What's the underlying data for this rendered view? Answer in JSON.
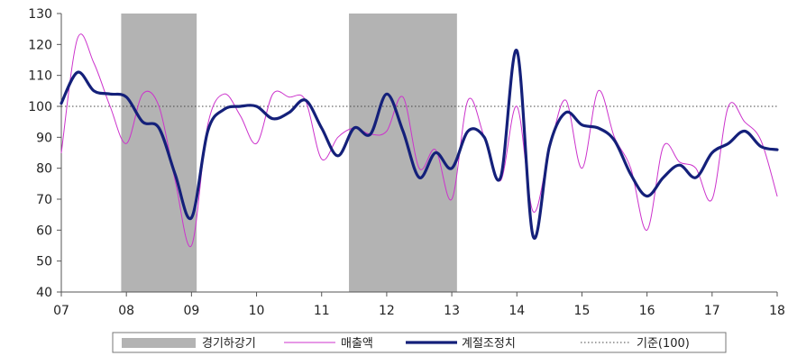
{
  "chart_data": {
    "type": "line",
    "title": "",
    "xlabel": "",
    "ylabel": "",
    "ylim": [
      40,
      130
    ],
    "yticks": [
      40,
      50,
      60,
      70,
      80,
      90,
      100,
      110,
      120,
      130
    ],
    "xlim": [
      2007,
      2018
    ],
    "xticks": [
      "07",
      "08",
      "09",
      "10",
      "11",
      "12",
      "13",
      "14",
      "15",
      "16",
      "17",
      "18"
    ],
    "grid": false,
    "reference_line": {
      "value": 100,
      "name": "기준(100)",
      "style": "dotted"
    },
    "shaded_periods": {
      "name": "경기하강기",
      "color": "#b3b3b3",
      "ranges": [
        [
          2007.92,
          2009.08
        ],
        [
          2011.42,
          2013.08
        ]
      ]
    },
    "series": [
      {
        "name": "매출액",
        "color": "#cc33cc",
        "x": [
          2007.0,
          2007.25,
          2007.5,
          2007.75,
          2008.0,
          2008.25,
          2008.5,
          2008.75,
          2009.0,
          2009.25,
          2009.5,
          2009.75,
          2010.0,
          2010.25,
          2010.5,
          2010.75,
          2011.0,
          2011.25,
          2011.5,
          2011.75,
          2012.0,
          2012.25,
          2012.5,
          2012.75,
          2013.0,
          2013.25,
          2013.5,
          2013.75,
          2014.0,
          2014.25,
          2014.5,
          2014.75,
          2015.0,
          2015.25,
          2015.5,
          2015.75,
          2016.0,
          2016.25,
          2016.5,
          2016.75,
          2017.0,
          2017.25,
          2017.5,
          2017.75,
          2018.0
        ],
        "values": [
          85,
          122,
          114,
          100,
          88,
          104,
          100,
          76,
          55,
          94,
          104,
          97,
          88,
          104,
          103,
          102,
          83,
          90,
          93,
          91,
          92,
          103,
          80,
          86,
          70,
          102,
          90,
          76,
          100,
          66,
          86,
          102,
          80,
          105,
          90,
          80,
          60,
          87,
          82,
          80,
          70,
          100,
          95,
          89,
          71
        ]
      },
      {
        "name": "계절조정치",
        "color": "#14207a",
        "x": [
          2007.0,
          2007.25,
          2007.5,
          2007.75,
          2008.0,
          2008.25,
          2008.5,
          2008.75,
          2009.0,
          2009.25,
          2009.5,
          2009.75,
          2010.0,
          2010.25,
          2010.5,
          2010.75,
          2011.0,
          2011.25,
          2011.5,
          2011.75,
          2012.0,
          2012.25,
          2012.5,
          2012.75,
          2013.0,
          2013.25,
          2013.5,
          2013.75,
          2014.0,
          2014.25,
          2014.5,
          2014.75,
          2015.0,
          2015.25,
          2015.5,
          2015.75,
          2016.0,
          2016.25,
          2016.5,
          2016.75,
          2017.0,
          2017.25,
          2017.5,
          2017.75,
          2018.0
        ],
        "values": [
          101,
          111,
          105,
          104,
          103,
          95,
          93,
          78,
          64,
          92,
          99,
          100,
          100,
          96,
          98,
          102,
          93,
          84,
          93,
          91,
          104,
          92,
          77,
          85,
          80,
          92,
          90,
          77,
          118,
          58,
          87,
          98,
          94,
          93,
          89,
          78,
          71,
          77,
          81,
          77,
          85,
          88,
          92,
          87,
          86
        ]
      }
    ],
    "legend": {
      "placement": "bottom",
      "items": [
        {
          "label": "경기하강기",
          "kind": "band"
        },
        {
          "label": "매출액",
          "kind": "thin-line"
        },
        {
          "label": "계절조정치",
          "kind": "thick-line"
        },
        {
          "label": "기준(100)",
          "kind": "dotted-line"
        }
      ]
    }
  }
}
